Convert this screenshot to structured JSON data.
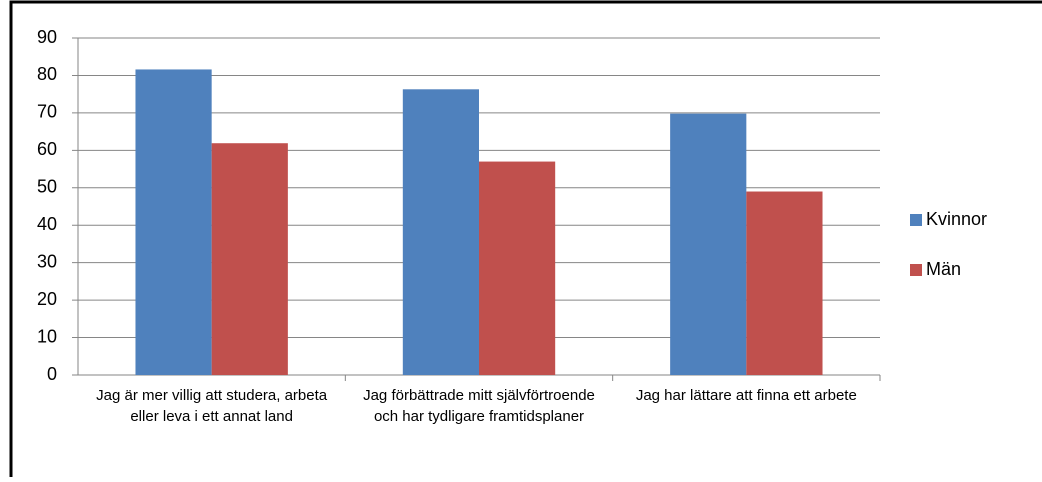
{
  "chart_data": {
    "type": "bar",
    "categories": [
      "Jag är mer villig att studera, arbeta eller leva i ett annat land",
      "Jag förbättrade mitt självförtroende och har tydligare framtidsplaner",
      "Jag har lättare att finna ett arbete"
    ],
    "series": [
      {
        "name": "Kvinnor",
        "color": "#4f81bd",
        "values": [
          81.6,
          76.3,
          69.8
        ]
      },
      {
        "name": "Män",
        "color": "#c0504d",
        "values": [
          61.9,
          57.0,
          49.0
        ]
      }
    ],
    "ylim": [
      0,
      90
    ],
    "yticks": [
      0,
      10,
      20,
      30,
      40,
      50,
      60,
      70,
      80,
      90
    ],
    "grid": true,
    "legend": "right"
  }
}
